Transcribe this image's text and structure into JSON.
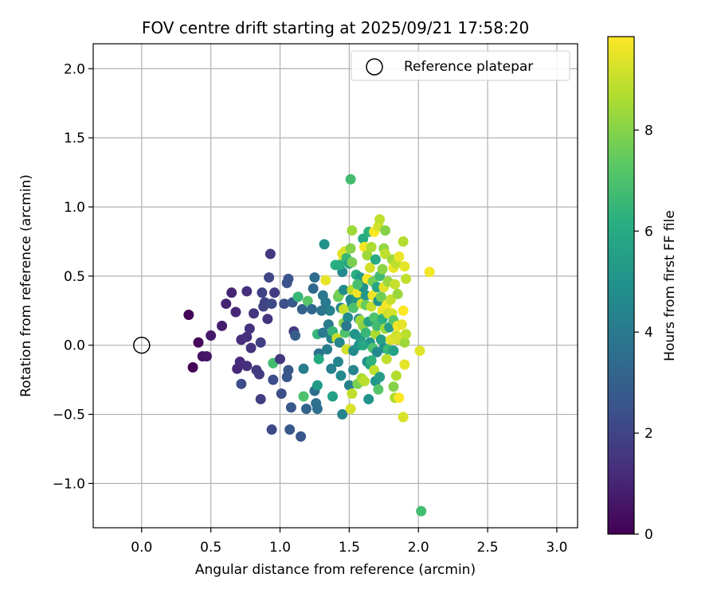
{
  "chart_data": {
    "type": "scatter",
    "title": "FOV centre drift starting at 2025/09/21 17:58:20",
    "xlabel": "Angular distance from reference (arcmin)",
    "ylabel": "Rotation from reference (arcmin)",
    "xlim": [
      -0.35,
      3.15
    ],
    "ylim": [
      -1.32,
      2.18
    ],
    "xticks": [
      0.0,
      0.5,
      1.0,
      1.5,
      2.0,
      2.5,
      3.0
    ],
    "xtick_labels": [
      "0.0",
      "0.5",
      "1.0",
      "1.5",
      "2.0",
      "2.5",
      "3.0"
    ],
    "yticks": [
      -1.0,
      -0.5,
      0.0,
      0.5,
      1.0,
      1.5,
      2.0
    ],
    "ytick_labels": [
      "−1.0",
      "−0.5",
      "0.0",
      "0.5",
      "1.0",
      "1.5",
      "2.0"
    ],
    "grid": true,
    "legend": {
      "position": "top-right",
      "entries": [
        "Reference platepar"
      ]
    },
    "reference_point": {
      "x": 0.0,
      "y": 0.0
    },
    "colorbar": {
      "label": "Hours from first FF file",
      "range": [
        0,
        9.85
      ],
      "ticks": [
        0,
        2,
        4,
        6,
        8
      ],
      "tick_labels": [
        "0",
        "2",
        "4",
        "6",
        "8"
      ],
      "colormap": "viridis"
    },
    "points": [
      {
        "x": 0.34,
        "y": 0.22,
        "h": 0.1
      },
      {
        "x": 0.37,
        "y": -0.16,
        "h": 0.1
      },
      {
        "x": 0.41,
        "y": 0.02,
        "h": 0.2
      },
      {
        "x": 0.44,
        "y": -0.08,
        "h": 0.5
      },
      {
        "x": 0.47,
        "y": -0.08,
        "h": 0.6
      },
      {
        "x": 0.5,
        "y": 0.07,
        "h": 0.7
      },
      {
        "x": 0.58,
        "y": 0.14,
        "h": 0.8
      },
      {
        "x": 0.61,
        "y": 0.3,
        "h": 1.0
      },
      {
        "x": 0.65,
        "y": 0.38,
        "h": 1.0
      },
      {
        "x": 0.68,
        "y": 0.24,
        "h": 1.1
      },
      {
        "x": 0.69,
        "y": -0.17,
        "h": 1.1
      },
      {
        "x": 0.71,
        "y": -0.12,
        "h": 1.2
      },
      {
        "x": 0.72,
        "y": 0.04,
        "h": 1.2
      },
      {
        "x": 0.72,
        "y": -0.28,
        "h": 2.3
      },
      {
        "x": 0.76,
        "y": 0.06,
        "h": 1.3
      },
      {
        "x": 0.76,
        "y": -0.15,
        "h": 1.3
      },
      {
        "x": 0.76,
        "y": 0.39,
        "h": 1.3
      },
      {
        "x": 0.78,
        "y": 0.12,
        "h": 1.4
      },
      {
        "x": 0.79,
        "y": -0.02,
        "h": 1.5
      },
      {
        "x": 0.81,
        "y": 0.23,
        "h": 1.5
      },
      {
        "x": 0.83,
        "y": -0.18,
        "h": 1.6
      },
      {
        "x": 0.85,
        "y": -0.21,
        "h": 1.7
      },
      {
        "x": 0.86,
        "y": 0.02,
        "h": 1.8
      },
      {
        "x": 0.86,
        "y": -0.39,
        "h": 1.8
      },
      {
        "x": 0.87,
        "y": 0.38,
        "h": 1.9
      },
      {
        "x": 0.88,
        "y": 0.28,
        "h": 2.0
      },
      {
        "x": 0.89,
        "y": 0.31,
        "h": 2.0
      },
      {
        "x": 0.91,
        "y": 0.19,
        "h": 1.5
      },
      {
        "x": 0.92,
        "y": 0.49,
        "h": 2.1
      },
      {
        "x": 0.93,
        "y": 0.66,
        "h": 1.6
      },
      {
        "x": 0.94,
        "y": -0.61,
        "h": 2.2
      },
      {
        "x": 0.94,
        "y": 0.3,
        "h": 2.2
      },
      {
        "x": 0.95,
        "y": -0.25,
        "h": 2.3
      },
      {
        "x": 0.96,
        "y": 0.38,
        "h": 1.7
      },
      {
        "x": 0.95,
        "y": -0.13,
        "h": 6.8
      },
      {
        "x": 1.0,
        "y": -0.1,
        "h": 1.6
      },
      {
        "x": 1.01,
        "y": -0.35,
        "h": 2.4
      },
      {
        "x": 1.03,
        "y": 0.3,
        "h": 2.4
      },
      {
        "x": 1.05,
        "y": 0.45,
        "h": 2.5
      },
      {
        "x": 1.05,
        "y": -0.23,
        "h": 2.6
      },
      {
        "x": 1.06,
        "y": -0.18,
        "h": 2.6
      },
      {
        "x": 1.06,
        "y": 0.48,
        "h": 2.5
      },
      {
        "x": 1.07,
        "y": -0.61,
        "h": 2.7
      },
      {
        "x": 1.08,
        "y": -0.45,
        "h": 2.7
      },
      {
        "x": 1.09,
        "y": 0.31,
        "h": 2.8
      },
      {
        "x": 1.1,
        "y": 0.1,
        "h": 1.7
      },
      {
        "x": 1.11,
        "y": 0.07,
        "h": 2.9
      },
      {
        "x": 1.13,
        "y": 0.35,
        "h": 6.5
      },
      {
        "x": 1.15,
        "y": -0.66,
        "h": 2.6
      },
      {
        "x": 1.16,
        "y": 0.26,
        "h": 3.0
      },
      {
        "x": 1.17,
        "y": -0.37,
        "h": 7.0
      },
      {
        "x": 1.17,
        "y": -0.17,
        "h": 4.2
      },
      {
        "x": 1.19,
        "y": -0.46,
        "h": 3.2
      },
      {
        "x": 1.2,
        "y": 0.32,
        "h": 7.2
      },
      {
        "x": 1.23,
        "y": 0.26,
        "h": 3.3
      },
      {
        "x": 1.24,
        "y": 0.41,
        "h": 3.3
      },
      {
        "x": 1.25,
        "y": -0.33,
        "h": 3.5
      },
      {
        "x": 1.25,
        "y": 0.49,
        "h": 3.5
      },
      {
        "x": 1.26,
        "y": -0.42,
        "h": 3.6
      },
      {
        "x": 1.27,
        "y": -0.29,
        "h": 5.3
      },
      {
        "x": 1.27,
        "y": -0.46,
        "h": 3.6
      },
      {
        "x": 1.27,
        "y": 0.08,
        "h": 6.5
      },
      {
        "x": 1.28,
        "y": -0.06,
        "h": 3.7
      },
      {
        "x": 1.28,
        "y": -0.1,
        "h": 6.0
      },
      {
        "x": 1.3,
        "y": 0.25,
        "h": 3.8
      },
      {
        "x": 1.31,
        "y": 0.36,
        "h": 3.9
      },
      {
        "x": 1.31,
        "y": 0.09,
        "h": 4.0
      },
      {
        "x": 1.32,
        "y": 0.73,
        "h": 5.0
      },
      {
        "x": 1.33,
        "y": 0.31,
        "h": 4.0
      },
      {
        "x": 1.33,
        "y": 0.47,
        "h": 9.5
      },
      {
        "x": 1.34,
        "y": -0.03,
        "h": 4.1
      },
      {
        "x": 1.35,
        "y": 0.15,
        "h": 4.1
      },
      {
        "x": 1.36,
        "y": 0.25,
        "h": 4.2
      },
      {
        "x": 1.37,
        "y": 0.05,
        "h": 4.3
      },
      {
        "x": 1.37,
        "y": -0.17,
        "h": 4.3
      },
      {
        "x": 1.38,
        "y": -0.37,
        "h": 5.6
      },
      {
        "x": 1.38,
        "y": 0.1,
        "h": 6.5
      },
      {
        "x": 1.4,
        "y": 0.58,
        "h": 6.2
      },
      {
        "x": 1.41,
        "y": 0.05,
        "h": 9.0
      },
      {
        "x": 1.42,
        "y": -0.12,
        "h": 4.4
      },
      {
        "x": 1.42,
        "y": 0.35,
        "h": 7.5
      },
      {
        "x": 1.43,
        "y": 0.37,
        "h": 7.8
      },
      {
        "x": 1.43,
        "y": 0.02,
        "h": 4.5
      },
      {
        "x": 1.44,
        "y": 0.27,
        "h": 4.5
      },
      {
        "x": 1.44,
        "y": -0.22,
        "h": 4.6
      },
      {
        "x": 1.45,
        "y": 0.66,
        "h": 9.4
      },
      {
        "x": 1.45,
        "y": 0.53,
        "h": 4.6
      },
      {
        "x": 1.45,
        "y": 0.6,
        "h": 9.6
      },
      {
        "x": 1.45,
        "y": -0.5,
        "h": 4.4
      },
      {
        "x": 1.46,
        "y": 0.4,
        "h": 4.7
      },
      {
        "x": 1.46,
        "y": 0.26,
        "h": 9.0
      },
      {
        "x": 1.46,
        "y": 0.16,
        "h": 8.0
      },
      {
        "x": 1.47,
        "y": 0.09,
        "h": 7.0
      },
      {
        "x": 1.47,
        "y": 0.68,
        "h": 9.3
      },
      {
        "x": 1.48,
        "y": -0.03,
        "h": 9.2
      },
      {
        "x": 1.48,
        "y": 0.63,
        "h": 6.6
      },
      {
        "x": 1.49,
        "y": 0.2,
        "h": 4.7
      },
      {
        "x": 1.5,
        "y": -0.29,
        "h": 4.3
      },
      {
        "x": 1.5,
        "y": 0.59,
        "h": 5.6
      },
      {
        "x": 1.51,
        "y": -0.46,
        "h": 9.3
      },
      {
        "x": 1.51,
        "y": 0.33,
        "h": 4.6
      },
      {
        "x": 1.51,
        "y": 1.2,
        "h": 6.8
      },
      {
        "x": 1.51,
        "y": 0.7,
        "h": 8.0
      },
      {
        "x": 1.52,
        "y": -0.35,
        "h": 8.9
      },
      {
        "x": 1.52,
        "y": 0.3,
        "h": 4.6
      },
      {
        "x": 1.52,
        "y": 0.4,
        "h": 8.8
      },
      {
        "x": 1.52,
        "y": 0.6,
        "h": 7.8
      },
      {
        "x": 1.52,
        "y": 0.83,
        "h": 8.4
      },
      {
        "x": 1.53,
        "y": -0.04,
        "h": 4.7
      },
      {
        "x": 1.53,
        "y": 0.27,
        "h": 7.0
      },
      {
        "x": 1.54,
        "y": 0.08,
        "h": 5.0
      },
      {
        "x": 1.55,
        "y": 0.51,
        "h": 6.2
      },
      {
        "x": 1.55,
        "y": 0.34,
        "h": 5.2
      },
      {
        "x": 1.56,
        "y": -0.28,
        "h": 7.8
      },
      {
        "x": 1.56,
        "y": 0.38,
        "h": 9.7
      },
      {
        "x": 1.57,
        "y": 0.19,
        "h": 4.8
      },
      {
        "x": 1.57,
        "y": 0.0,
        "h": 5.0
      },
      {
        "x": 1.58,
        "y": 0.49,
        "h": 5.3
      },
      {
        "x": 1.58,
        "y": 0.18,
        "h": 8.4
      },
      {
        "x": 1.58,
        "y": 0.05,
        "h": 5.4
      },
      {
        "x": 1.59,
        "y": 0.3,
        "h": 9.1
      },
      {
        "x": 1.59,
        "y": -0.24,
        "h": 8.6
      },
      {
        "x": 1.6,
        "y": 0.77,
        "h": 6.0
      },
      {
        "x": 1.6,
        "y": 0.42,
        "h": 4.9
      },
      {
        "x": 1.6,
        "y": 0.14,
        "h": 8.1
      },
      {
        "x": 1.61,
        "y": -0.26,
        "h": 8.8
      },
      {
        "x": 1.61,
        "y": 0.71,
        "h": 9.7
      },
      {
        "x": 1.62,
        "y": 0.36,
        "h": 5.2
      },
      {
        "x": 1.62,
        "y": 0.29,
        "h": 7.5
      },
      {
        "x": 1.62,
        "y": 0.09,
        "h": 6.5
      },
      {
        "x": 1.63,
        "y": 0.65,
        "h": 8.4
      },
      {
        "x": 1.63,
        "y": -0.12,
        "h": 4.9
      },
      {
        "x": 1.63,
        "y": 0.48,
        "h": 9.8
      },
      {
        "x": 1.64,
        "y": 0.17,
        "h": 5.6
      },
      {
        "x": 1.64,
        "y": 0.82,
        "h": 6.3
      },
      {
        "x": 1.64,
        "y": -0.39,
        "h": 5.0
      },
      {
        "x": 1.65,
        "y": -0.14,
        "h": 5.7
      },
      {
        "x": 1.65,
        "y": 0.02,
        "h": 5.1
      },
      {
        "x": 1.65,
        "y": 0.56,
        "h": 9.2
      },
      {
        "x": 1.66,
        "y": 0.28,
        "h": 9.0
      },
      {
        "x": 1.66,
        "y": 0.71,
        "h": 8.6
      },
      {
        "x": 1.67,
        "y": -0.02,
        "h": 7.0
      },
      {
        "x": 1.67,
        "y": 0.36,
        "h": 9.6
      },
      {
        "x": 1.67,
        "y": 0.46,
        "h": 7.7
      },
      {
        "x": 1.68,
        "y": 0.82,
        "h": 9.9
      },
      {
        "x": 1.68,
        "y": -0.18,
        "h": 8.9
      },
      {
        "x": 1.68,
        "y": 0.2,
        "h": 7.0
      },
      {
        "x": 1.69,
        "y": -0.26,
        "h": 5.1
      },
      {
        "x": 1.69,
        "y": 0.08,
        "h": 8.6
      },
      {
        "x": 1.69,
        "y": 0.62,
        "h": 6.0
      },
      {
        "x": 1.7,
        "y": 0.42,
        "h": 5.7
      },
      {
        "x": 1.7,
        "y": -0.05,
        "h": 4.6
      },
      {
        "x": 1.7,
        "y": 0.14,
        "h": 6.8
      },
      {
        "x": 1.71,
        "y": 0.86,
        "h": 9.2
      },
      {
        "x": 1.71,
        "y": -0.32,
        "h": 7.2
      },
      {
        "x": 1.71,
        "y": 0.32,
        "h": 5.0
      },
      {
        "x": 1.72,
        "y": 0.5,
        "h": 6.7
      },
      {
        "x": 1.72,
        "y": 0.91,
        "h": 8.9
      },
      {
        "x": 1.72,
        "y": -0.23,
        "h": 5.4
      },
      {
        "x": 1.73,
        "y": 0.04,
        "h": 5.5
      },
      {
        "x": 1.73,
        "y": 0.35,
        "h": 7.7
      },
      {
        "x": 1.74,
        "y": 0.25,
        "h": 9.6
      },
      {
        "x": 1.74,
        "y": 0.19,
        "h": 6.2
      },
      {
        "x": 1.74,
        "y": 0.55,
        "h": 8.1
      },
      {
        "x": 1.75,
        "y": -0.02,
        "h": 4.9
      },
      {
        "x": 1.75,
        "y": 0.42,
        "h": 9.4
      },
      {
        "x": 1.75,
        "y": 0.7,
        "h": 8.2
      },
      {
        "x": 1.76,
        "y": 0.12,
        "h": 8.4
      },
      {
        "x": 1.76,
        "y": 0.66,
        "h": 8.9
      },
      {
        "x": 1.76,
        "y": 0.83,
        "h": 8.0
      },
      {
        "x": 1.77,
        "y": -0.1,
        "h": 8.9
      },
      {
        "x": 1.77,
        "y": 0.29,
        "h": 9.7
      },
      {
        "x": 1.78,
        "y": 0.46,
        "h": 8.3
      },
      {
        "x": 1.78,
        "y": -0.03,
        "h": 6.6
      },
      {
        "x": 1.78,
        "y": 0.23,
        "h": 9.1
      },
      {
        "x": 1.79,
        "y": 0.13,
        "h": 5.4
      },
      {
        "x": 1.8,
        "y": 0.33,
        "h": 9.0
      },
      {
        "x": 1.8,
        "y": 0.04,
        "h": 9.4
      },
      {
        "x": 1.81,
        "y": 0.62,
        "h": 8.4
      },
      {
        "x": 1.81,
        "y": 0.23,
        "h": 9.3
      },
      {
        "x": 1.82,
        "y": 0.18,
        "h": 7.2
      },
      {
        "x": 1.82,
        "y": -0.3,
        "h": 8.0
      },
      {
        "x": 1.82,
        "y": 0.56,
        "h": 9.6
      },
      {
        "x": 1.82,
        "y": -0.04,
        "h": 5.6
      },
      {
        "x": 1.83,
        "y": 0.44,
        "h": 9.0
      },
      {
        "x": 1.83,
        "y": -0.38,
        "h": 8.6
      },
      {
        "x": 1.84,
        "y": 0.59,
        "h": 8.9
      },
      {
        "x": 1.84,
        "y": 0.07,
        "h": 9.1
      },
      {
        "x": 1.84,
        "y": -0.22,
        "h": 8.7
      },
      {
        "x": 1.85,
        "y": 0.37,
        "h": 8.3
      },
      {
        "x": 1.85,
        "y": 0.14,
        "h": 9.7
      },
      {
        "x": 1.85,
        "y": 0.04,
        "h": 9.2
      },
      {
        "x": 1.86,
        "y": -0.38,
        "h": 9.8
      },
      {
        "x": 1.86,
        "y": 0.64,
        "h": 9.6
      },
      {
        "x": 1.87,
        "y": 0.05,
        "h": 9.3
      },
      {
        "x": 1.88,
        "y": 0.15,
        "h": 9.5
      },
      {
        "x": 1.89,
        "y": 0.75,
        "h": 8.7
      },
      {
        "x": 1.89,
        "y": 0.25,
        "h": 9.8
      },
      {
        "x": 1.89,
        "y": -0.52,
        "h": 9.3
      },
      {
        "x": 1.9,
        "y": 0.57,
        "h": 9.5
      },
      {
        "x": 1.9,
        "y": -0.14,
        "h": 9.5
      },
      {
        "x": 1.9,
        "y": 0.02,
        "h": 8.4
      },
      {
        "x": 1.91,
        "y": 0.08,
        "h": 8.8
      },
      {
        "x": 1.91,
        "y": 0.48,
        "h": 8.9
      },
      {
        "x": 2.01,
        "y": -0.04,
        "h": 9.4
      },
      {
        "x": 2.02,
        "y": -1.2,
        "h": 6.8
      },
      {
        "x": 2.08,
        "y": 0.53,
        "h": 9.7
      },
      {
        "x": 1.48,
        "y": 0.14,
        "h": 3.9
      },
      {
        "x": 1.53,
        "y": -0.18,
        "h": 4.5
      },
      {
        "x": 1.6,
        "y": 0.0,
        "h": 5.8
      },
      {
        "x": 1.66,
        "y": -0.11,
        "h": 6.3
      },
      {
        "x": 1.56,
        "y": 0.44,
        "h": 6.9
      },
      {
        "x": 1.43,
        "y": 0.58,
        "h": 6.1
      }
    ]
  }
}
